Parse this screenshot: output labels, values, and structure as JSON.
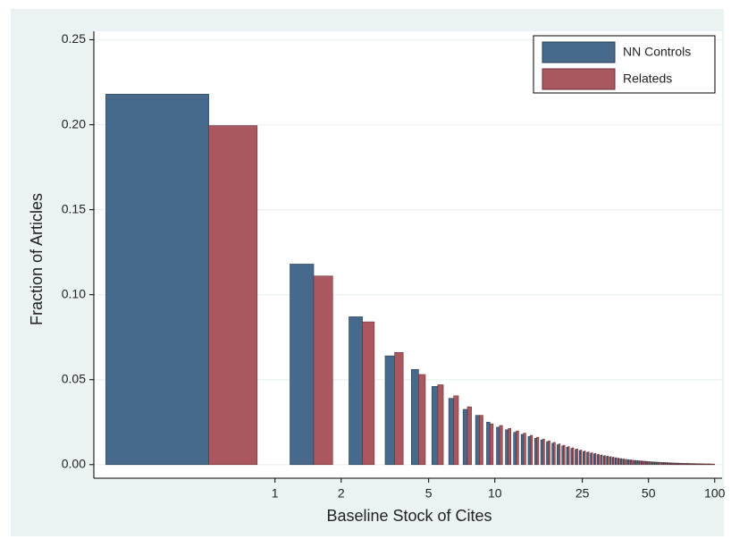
{
  "chart_data": {
    "type": "bar",
    "x_label": "Baseline Stock of Cites",
    "y_label": "Fraction of Articles",
    "x": [
      0.5,
      1.5,
      2.5,
      3.5,
      4.5,
      5.5,
      6.5,
      7.5,
      8.5,
      9.5,
      10.5,
      11.5,
      12.5,
      13.5,
      14.5,
      15.5,
      16.5,
      17.5,
      18.5,
      19.5,
      20.5,
      21.5,
      22.5,
      23.5,
      24.5,
      25.5,
      26.5,
      27.5,
      28.5,
      29.5,
      30.5,
      31.5,
      32.5,
      33.5,
      34.5,
      35.5,
      36.5,
      37.5,
      38.5,
      39.5,
      40.5,
      41.5,
      42.5,
      43.5,
      44.5,
      45.5,
      46.5,
      47.5,
      48.5,
      49.5,
      50.5,
      51.5,
      52.5,
      53.5,
      54.5,
      55.5,
      56.5,
      57.5,
      58.5,
      59.5,
      60.5,
      61.5,
      62.5,
      63.5,
      64.5,
      65.5,
      66.5,
      67.5,
      68.5,
      69.5,
      70.5,
      71.5,
      72.5,
      73.5,
      74.5,
      75.5,
      76.5,
      77.5,
      78.5,
      79.5,
      80.5,
      81.5,
      82.5,
      83.5,
      84.5,
      85.5,
      86.5,
      87.5,
      88.5,
      89.5,
      90.5,
      91.5,
      92.5,
      93.5,
      94.5,
      95.5,
      96.5,
      97.5,
      98.5,
      99.5
    ],
    "series": [
      {
        "name": "NN Controls",
        "color": "#46698c",
        "values": [
          0.218,
          0.118,
          0.087,
          0.064,
          0.056,
          0.046,
          0.039,
          0.0325,
          0.029,
          0.025,
          0.022,
          0.0205,
          0.019,
          0.0178,
          0.0166,
          0.0155,
          0.0145,
          0.0135,
          0.0126,
          0.0117,
          0.011,
          0.0102,
          0.0095,
          0.0089,
          0.0083,
          0.0077,
          0.0072,
          0.0067,
          0.0063,
          0.0059,
          0.0055,
          0.0051,
          0.0048,
          0.0045,
          0.0042,
          0.0039,
          0.0037,
          0.0034,
          0.0032,
          0.003,
          0.0028,
          0.0027,
          0.0025,
          0.0024,
          0.0023,
          0.0022,
          0.0021,
          0.002,
          0.0019,
          0.0018,
          0.0017,
          0.0016,
          0.0016,
          0.0015,
          0.0014,
          0.0014,
          0.0013,
          0.0013,
          0.0012,
          0.0012,
          0.0011,
          0.0011,
          0.001,
          0.001,
          0.001,
          0.0009,
          0.0009,
          0.0009,
          0.0008,
          0.0008,
          0.0008,
          0.0008,
          0.0007,
          0.0007,
          0.0007,
          0.0007,
          0.0006,
          0.0006,
          0.0006,
          0.0006,
          0.0006,
          0.0005,
          0.0005,
          0.0005,
          0.0005,
          0.0005,
          0.0005,
          0.0005,
          0.0004,
          0.0004,
          0.0004,
          0.0004,
          0.0004,
          0.0004,
          0.0004,
          0.0003,
          0.0003,
          0.0003,
          0.0003,
          0.0003
        ]
      },
      {
        "name": "Relateds",
        "color": "#a8585e",
        "values": [
          0.1995,
          0.111,
          0.084,
          0.066,
          0.053,
          0.047,
          0.0405,
          0.034,
          0.029,
          0.024,
          0.023,
          0.0213,
          0.0198,
          0.0185,
          0.0172,
          0.0161,
          0.015,
          0.014,
          0.0131,
          0.0122,
          0.0114,
          0.0106,
          0.0099,
          0.0092,
          0.0086,
          0.008,
          0.0075,
          0.007,
          0.0066,
          0.0061,
          0.0057,
          0.0053,
          0.005,
          0.0047,
          0.0044,
          0.0041,
          0.0038,
          0.0036,
          0.0033,
          0.0031,
          0.0029,
          0.0028,
          0.0026,
          0.0025,
          0.0024,
          0.0023,
          0.0022,
          0.0021,
          0.002,
          0.0019,
          0.0018,
          0.0017,
          0.0016,
          0.0016,
          0.0015,
          0.0014,
          0.0014,
          0.0013,
          0.0013,
          0.0012,
          0.0012,
          0.0011,
          0.0011,
          0.001,
          0.001,
          0.001,
          0.0009,
          0.0009,
          0.0009,
          0.0008,
          0.0008,
          0.0008,
          0.0008,
          0.0007,
          0.0007,
          0.0007,
          0.0007,
          0.0006,
          0.0006,
          0.0006,
          0.0006,
          0.0006,
          0.0005,
          0.0005,
          0.0005,
          0.0005,
          0.0005,
          0.0005,
          0.0005,
          0.0004,
          0.0004,
          0.0004,
          0.0004,
          0.0004,
          0.0004,
          0.0004,
          0.0003,
          0.0003,
          0.0003,
          0.0003
        ]
      }
    ],
    "xlim": [
      0.15,
      108
    ],
    "x_log": true,
    "xticks": [
      1,
      2,
      5,
      10,
      25,
      50,
      100
    ],
    "ylim": [
      -0.008,
      0.255
    ],
    "yticks": [
      {
        "value": 0,
        "label": "0.00"
      },
      0.05,
      {
        "value": 0.1,
        "label": "0.10"
      },
      0.15,
      {
        "value": 0.2,
        "label": "0.20"
      },
      0.25
    ],
    "grid": true,
    "legend": "top-right"
  }
}
